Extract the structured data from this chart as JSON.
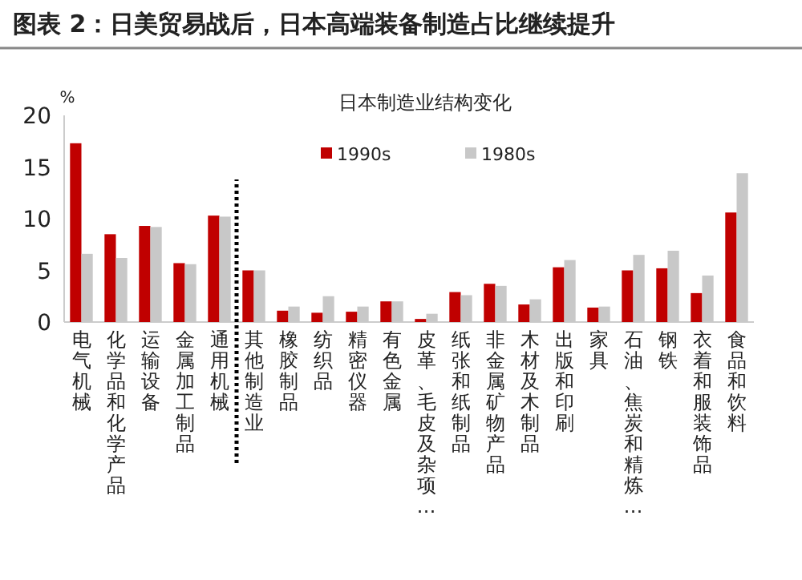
{
  "chart_data": {
    "type": "bar",
    "title": "图表 2：日美贸易战后，日本高端装备制造占比继续提升",
    "subtitle": "日本制造业结构变化",
    "ylabel": "%",
    "categories": [
      "电气机械",
      "化学品和化学产品",
      "运输设备",
      "金属加工制品",
      "通用机械",
      "其他制造业",
      "橡胶制品",
      "纺织品",
      "精密仪器",
      "有色金属",
      "皮革、毛皮及杂项…",
      "纸张和纸制品",
      "非金属矿物产品",
      "木材及木制品",
      "出版和印刷",
      "家具",
      "石油、焦炭和精炼…",
      "钢铁",
      "衣着和服装饰品",
      "食品和饮料"
    ],
    "series": [
      {
        "name": "1990s",
        "color": "#c00000",
        "values": [
          17.3,
          8.5,
          9.3,
          5.7,
          10.3,
          5.0,
          1.1,
          0.9,
          1.0,
          2.0,
          0.3,
          2.9,
          3.7,
          1.7,
          5.3,
          1.4,
          5.0,
          5.2,
          2.8,
          10.6
        ]
      },
      {
        "name": "1980s",
        "color": "#c8c8c8",
        "values": [
          6.6,
          6.2,
          9.2,
          5.6,
          10.2,
          5.0,
          1.5,
          2.5,
          1.5,
          2.0,
          0.8,
          2.6,
          3.5,
          2.2,
          6.0,
          1.5,
          6.5,
          6.9,
          4.5,
          14.4
        ]
      }
    ],
    "ylim": [
      0,
      20
    ],
    "yticks": [
      0,
      5,
      10,
      15,
      20
    ],
    "grid": false,
    "legend": "top"
  }
}
